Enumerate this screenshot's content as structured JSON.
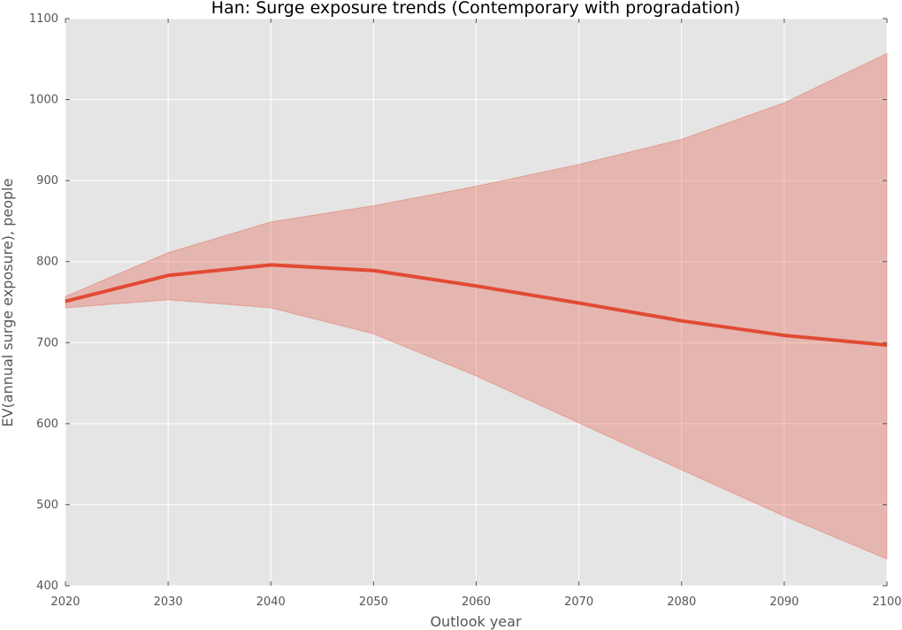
{
  "chart_data": {
    "type": "line",
    "title": "Han: Surge exposure trends (Contemporary with progradation)",
    "xlabel": "Outlook year",
    "ylabel": "EV(annual surge exposure), people",
    "xlim": [
      2020,
      2100
    ],
    "ylim": [
      400,
      1100
    ],
    "x_ticks": [
      2020,
      2030,
      2040,
      2050,
      2060,
      2070,
      2080,
      2090,
      2100
    ],
    "y_ticks": [
      400,
      500,
      600,
      700,
      800,
      900,
      1000,
      1100
    ],
    "grid": true,
    "x": [
      2020,
      2030,
      2040,
      2050,
      2060,
      2070,
      2080,
      2090,
      2100
    ],
    "series": [
      {
        "values": [
          751,
          783,
          796,
          789,
          770,
          749,
          727,
          709,
          697
        ],
        "lower": [
          743,
          753,
          743,
          711,
          659,
          601,
          543,
          486,
          433
        ],
        "upper": [
          757,
          811,
          849,
          869,
          893,
          920,
          951,
          996,
          1057
        ],
        "color": "#e24a33",
        "band_color": "#e24a33"
      }
    ],
    "background_color": "#e5e5e5",
    "grid_color": "#ffffff"
  }
}
